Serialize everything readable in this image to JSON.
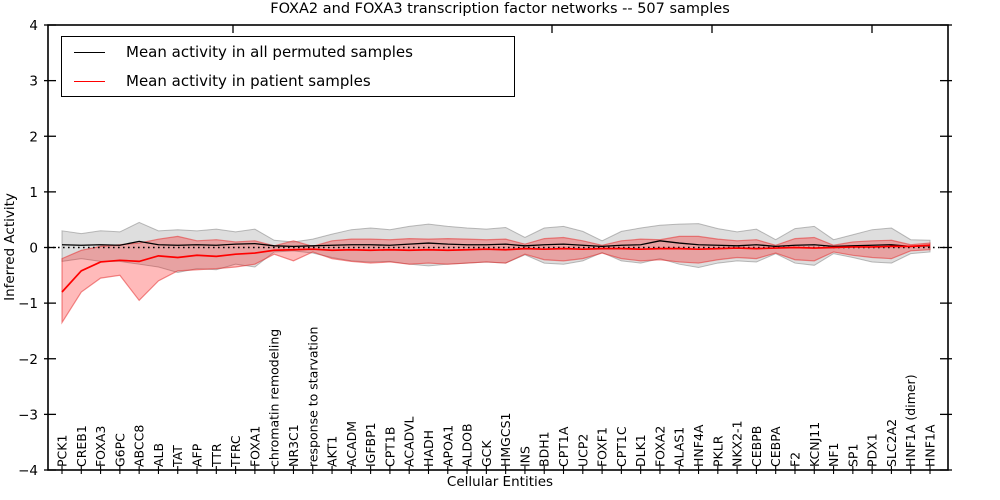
{
  "figure": {
    "title": "FOXA2 and FOXA3 transcription factor networks -- 507 samples",
    "xlabel": "Cellular Entities",
    "ylabel": "Inferred Activity"
  },
  "legend": {
    "entries": [
      {
        "label": "Mean activity in all permuted samples",
        "color": "#000000"
      },
      {
        "label": "Mean activity in patient samples",
        "color": "#ff0000"
      }
    ]
  },
  "chart_data": {
    "type": "line",
    "title": "FOXA2 and FOXA3 transcription factor networks -- 507 samples",
    "xlabel": "Cellular Entities",
    "ylabel": "Inferred Activity",
    "ylim": [
      -4,
      4
    ],
    "yticks": [
      4,
      3,
      2,
      1,
      0,
      -1,
      -2,
      -3,
      -4
    ],
    "grid": false,
    "legend_position": "upper left",
    "zero_reference_line": true,
    "categories": [
      "PCK1",
      "CREB1",
      "FOXA3",
      "G6PC",
      "ABCC8",
      "ALB",
      "TAT",
      "AFP",
      "TTR",
      "TFRC",
      "FOXA1",
      "chromatin remodeling",
      "NR3C1",
      "response to starvation",
      "AKT1",
      "ACADM",
      "IGFBP1",
      "CPT1B",
      "ACADVL",
      "HADH",
      "APOA1",
      "ALDOB",
      "GCK",
      "HMGCS1",
      "INS",
      "BDH1",
      "CPT1A",
      "UCP2",
      "FOXF1",
      "CPT1C",
      "DLK1",
      "FOXA2",
      "ALAS1",
      "HNF4A",
      "PKLR",
      "NKX2-1",
      "CEBPB",
      "CEBPA",
      "F2",
      "KCNJ11",
      "NF1",
      "SP1",
      "PDX1",
      "SLC2A2",
      "HNF1A (dimer)",
      "HNF1A"
    ],
    "series": [
      {
        "name": "Mean activity in all permuted samples",
        "color": "#000000",
        "values": [
          0.05,
          0.04,
          0.05,
          0.04,
          0.11,
          0.05,
          0.04,
          0.05,
          0.04,
          0.06,
          0.07,
          0.03,
          0.02,
          0.03,
          0.04,
          0.05,
          0.05,
          0.04,
          0.06,
          0.08,
          0.06,
          0.05,
          0.05,
          0.06,
          0.03,
          0.05,
          0.06,
          0.04,
          0.02,
          0.04,
          0.05,
          0.12,
          0.08,
          0.05,
          0.04,
          0.03,
          0.05,
          0.02,
          0.04,
          0.05,
          0.02,
          0.03,
          0.04,
          0.05,
          0.02,
          0.03
        ],
        "band": {
          "upper": [
            0.3,
            0.25,
            0.3,
            0.28,
            0.45,
            0.3,
            0.32,
            0.3,
            0.33,
            0.28,
            0.33,
            0.13,
            0.1,
            0.15,
            0.24,
            0.32,
            0.35,
            0.32,
            0.38,
            0.42,
            0.38,
            0.35,
            0.33,
            0.36,
            0.18,
            0.35,
            0.38,
            0.29,
            0.12,
            0.29,
            0.35,
            0.4,
            0.42,
            0.43,
            0.34,
            0.28,
            0.33,
            0.14,
            0.34,
            0.38,
            0.14,
            0.23,
            0.32,
            0.35,
            0.14,
            0.13
          ],
          "lower": [
            -0.25,
            -0.2,
            -0.25,
            -0.25,
            -0.3,
            -0.35,
            -0.45,
            -0.38,
            -0.4,
            -0.3,
            -0.35,
            -0.08,
            -0.06,
            -0.1,
            -0.18,
            -0.24,
            -0.26,
            -0.25,
            -0.3,
            -0.33,
            -0.3,
            -0.28,
            -0.26,
            -0.28,
            -0.13,
            -0.28,
            -0.3,
            -0.24,
            -0.09,
            -0.24,
            -0.28,
            -0.2,
            -0.3,
            -0.36,
            -0.28,
            -0.24,
            -0.26,
            -0.11,
            -0.28,
            -0.32,
            -0.11,
            -0.18,
            -0.26,
            -0.28,
            -0.11,
            -0.08
          ],
          "fill": "rgba(0,0,0,0.13)",
          "edge": "rgba(110,110,110,0.45)"
        }
      },
      {
        "name": "Mean activity in patient samples",
        "color": "#ff0000",
        "values": [
          -0.8,
          -0.42,
          -0.26,
          -0.23,
          -0.25,
          -0.15,
          -0.18,
          -0.14,
          -0.16,
          -0.12,
          -0.1,
          -0.05,
          -0.04,
          -0.03,
          -0.05,
          -0.04,
          -0.05,
          -0.04,
          -0.05,
          -0.04,
          -0.05,
          -0.04,
          -0.03,
          -0.04,
          -0.02,
          -0.03,
          -0.02,
          -0.03,
          -0.02,
          -0.02,
          -0.03,
          -0.02,
          -0.02,
          -0.03,
          -0.02,
          -0.01,
          -0.02,
          -0.01,
          0.0,
          -0.01,
          0.0,
          0.01,
          0.01,
          0.02,
          0.02,
          0.04
        ],
        "band": {
          "upper": [
            -0.2,
            -0.05,
            0.02,
            0.05,
            0.08,
            0.15,
            0.2,
            0.12,
            0.14,
            0.1,
            0.12,
            0.03,
            0.12,
            0.02,
            0.12,
            0.15,
            0.15,
            0.14,
            0.16,
            0.15,
            0.16,
            0.15,
            0.14,
            0.15,
            0.06,
            0.16,
            0.18,
            0.12,
            0.04,
            0.12,
            0.15,
            0.14,
            0.2,
            0.2,
            0.15,
            0.12,
            0.14,
            0.04,
            0.16,
            0.18,
            0.04,
            0.1,
            0.12,
            0.13,
            0.05,
            0.08
          ],
          "lower": [
            -1.35,
            -0.8,
            -0.55,
            -0.5,
            -0.95,
            -0.6,
            -0.42,
            -0.4,
            -0.38,
            -0.35,
            -0.3,
            -0.12,
            -0.24,
            -0.08,
            -0.2,
            -0.25,
            -0.28,
            -0.26,
            -0.3,
            -0.28,
            -0.3,
            -0.28,
            -0.26,
            -0.28,
            -0.12,
            -0.22,
            -0.24,
            -0.2,
            -0.1,
            -0.2,
            -0.24,
            -0.22,
            -0.26,
            -0.28,
            -0.22,
            -0.18,
            -0.2,
            -0.1,
            -0.22,
            -0.24,
            -0.08,
            -0.14,
            -0.18,
            -0.2,
            -0.06,
            -0.04
          ],
          "fill": "rgba(255,0,0,0.27)",
          "edge": "rgba(230,50,50,0.55)"
        }
      }
    ]
  }
}
